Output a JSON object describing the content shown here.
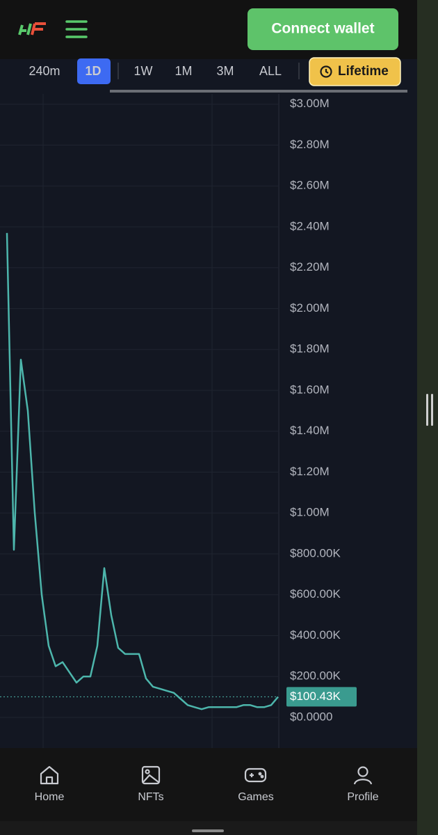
{
  "header": {
    "button": "Connect wallet"
  },
  "timeframes": [
    "240m",
    "1D",
    "1W",
    "1M",
    "3M",
    "ALL"
  ],
  "lifetime_button": "Lifetime",
  "chart_data": {
    "type": "line",
    "color": "#4db6ac",
    "values": [
      2370000,
      820000,
      1750000,
      1500000,
      1000000,
      600000,
      350000,
      250000,
      270000,
      220000,
      170000,
      200000,
      200000,
      350000,
      730000,
      500000,
      340000,
      310000,
      310000,
      310000,
      190000,
      150000,
      140000,
      130000,
      120000,
      90000,
      60000,
      50000,
      40000,
      50000,
      50000,
      50000,
      50000,
      50000,
      60000,
      60000,
      50000,
      50000,
      60000,
      100430
    ],
    "ylim": [
      -150000,
      3050000
    ],
    "yticks": [
      {
        "value": 0,
        "label": "$0.0000"
      },
      {
        "value": 200000,
        "label": "$200.00K"
      },
      {
        "value": 400000,
        "label": "$400.00K"
      },
      {
        "value": 600000,
        "label": "$600.00K"
      },
      {
        "value": 800000,
        "label": "$800.00K"
      },
      {
        "value": 1000000,
        "label": "$1.00M"
      },
      {
        "value": 1200000,
        "label": "$1.20M"
      },
      {
        "value": 1400000,
        "label": "$1.40M"
      },
      {
        "value": 1600000,
        "label": "$1.60M"
      },
      {
        "value": 1800000,
        "label": "$1.80M"
      },
      {
        "value": 2000000,
        "label": "$2.00M"
      },
      {
        "value": 2200000,
        "label": "$2.20M"
      },
      {
        "value": 2400000,
        "label": "$2.40M"
      },
      {
        "value": 2600000,
        "label": "$2.60M"
      },
      {
        "value": 2800000,
        "label": "$2.80M"
      },
      {
        "value": 3000000,
        "label": "$3.00M"
      }
    ],
    "grid": true,
    "price_label": {
      "value": 100430,
      "label": "$100.43K"
    }
  },
  "nav": [
    "Home",
    "NFTs",
    "Games",
    "Profile"
  ]
}
